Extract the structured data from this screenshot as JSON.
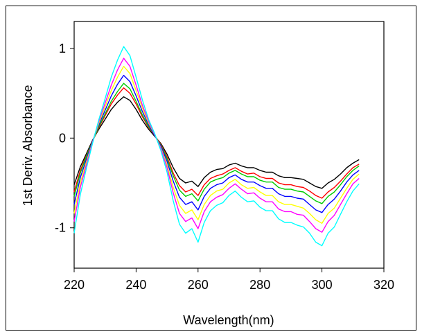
{
  "chart_data": {
    "type": "line",
    "title": "",
    "xlabel": "Wavelength(nm)",
    "ylabel": "1st Deriv. Absorbance",
    "xlim": [
      220,
      320
    ],
    "ylim": [
      -1.45,
      1.3
    ],
    "xticks": [
      220,
      240,
      260,
      280,
      300,
      320
    ],
    "yticks": [
      -1,
      0,
      1
    ],
    "x": [
      220,
      222,
      224,
      226,
      228,
      230,
      232,
      234,
      236,
      238,
      240,
      242,
      244,
      246,
      248,
      250,
      252,
      254,
      256,
      258,
      260,
      262,
      264,
      266,
      268,
      270,
      272,
      274,
      276,
      278,
      280,
      282,
      284,
      286,
      288,
      290,
      292,
      294,
      296,
      298,
      300,
      302,
      304,
      306,
      308,
      310,
      312
    ],
    "grid": false,
    "legend": "none",
    "series": [
      {
        "color": "#000000",
        "values": [
          -0.52,
          -0.32,
          -0.17,
          -0.02,
          0.1,
          0.21,
          0.32,
          0.4,
          0.46,
          0.42,
          0.32,
          0.2,
          0.1,
          0.02,
          -0.06,
          -0.18,
          -0.33,
          -0.45,
          -0.5,
          -0.48,
          -0.54,
          -0.44,
          -0.38,
          -0.35,
          -0.34,
          -0.3,
          -0.28,
          -0.31,
          -0.33,
          -0.33,
          -0.36,
          -0.38,
          -0.38,
          -0.42,
          -0.44,
          -0.44,
          -0.45,
          -0.46,
          -0.5,
          -0.54,
          -0.56,
          -0.5,
          -0.46,
          -0.4,
          -0.33,
          -0.28,
          -0.24
        ]
      },
      {
        "color": "#ff0000",
        "values": [
          -0.6,
          -0.36,
          -0.19,
          -0.03,
          0.12,
          0.25,
          0.38,
          0.48,
          0.56,
          0.5,
          0.38,
          0.24,
          0.12,
          0.03,
          -0.07,
          -0.21,
          -0.39,
          -0.53,
          -0.6,
          -0.57,
          -0.64,
          -0.52,
          -0.45,
          -0.42,
          -0.4,
          -0.36,
          -0.33,
          -0.37,
          -0.4,
          -0.39,
          -0.43,
          -0.45,
          -0.45,
          -0.5,
          -0.52,
          -0.52,
          -0.54,
          -0.55,
          -0.59,
          -0.64,
          -0.67,
          -0.6,
          -0.55,
          -0.48,
          -0.4,
          -0.33,
          -0.29
        ]
      },
      {
        "color": "#00cc00",
        "values": [
          -0.65,
          -0.39,
          -0.2,
          -0.03,
          0.13,
          0.27,
          0.41,
          0.52,
          0.61,
          0.55,
          0.41,
          0.26,
          0.13,
          0.03,
          -0.08,
          -0.23,
          -0.42,
          -0.58,
          -0.65,
          -0.62,
          -0.7,
          -0.57,
          -0.49,
          -0.46,
          -0.44,
          -0.39,
          -0.36,
          -0.4,
          -0.43,
          -0.43,
          -0.47,
          -0.49,
          -0.49,
          -0.55,
          -0.57,
          -0.57,
          -0.59,
          -0.6,
          -0.65,
          -0.7,
          -0.73,
          -0.65,
          -0.6,
          -0.52,
          -0.43,
          -0.36,
          -0.31
        ]
      },
      {
        "color": "#0000ff",
        "values": [
          -0.74,
          -0.44,
          -0.23,
          -0.03,
          0.15,
          0.31,
          0.47,
          0.6,
          0.7,
          0.63,
          0.47,
          0.3,
          0.15,
          0.03,
          -0.09,
          -0.26,
          -0.48,
          -0.66,
          -0.74,
          -0.71,
          -0.8,
          -0.65,
          -0.56,
          -0.52,
          -0.5,
          -0.44,
          -0.41,
          -0.46,
          -0.49,
          -0.49,
          -0.53,
          -0.56,
          -0.56,
          -0.62,
          -0.65,
          -0.65,
          -0.67,
          -0.68,
          -0.74,
          -0.8,
          -0.83,
          -0.74,
          -0.68,
          -0.59,
          -0.49,
          -0.41,
          -0.36
        ]
      },
      {
        "color": "#ffff00",
        "values": [
          -0.84,
          -0.5,
          -0.26,
          -0.04,
          0.17,
          0.35,
          0.53,
          0.68,
          0.8,
          0.72,
          0.53,
          0.34,
          0.17,
          0.04,
          -0.11,
          -0.3,
          -0.55,
          -0.75,
          -0.84,
          -0.8,
          -0.91,
          -0.74,
          -0.64,
          -0.59,
          -0.57,
          -0.5,
          -0.46,
          -0.52,
          -0.56,
          -0.55,
          -0.6,
          -0.64,
          -0.64,
          -0.71,
          -0.74,
          -0.74,
          -0.76,
          -0.78,
          -0.84,
          -0.91,
          -0.95,
          -0.84,
          -0.78,
          -0.67,
          -0.56,
          -0.46,
          -0.4
        ]
      },
      {
        "color": "#ff00ff",
        "values": [
          -0.93,
          -0.55,
          -0.29,
          -0.04,
          0.19,
          0.39,
          0.59,
          0.76,
          0.89,
          0.8,
          0.59,
          0.37,
          0.19,
          0.04,
          -0.12,
          -0.33,
          -0.61,
          -0.84,
          -0.93,
          -0.89,
          -1.01,
          -0.82,
          -0.71,
          -0.66,
          -0.63,
          -0.56,
          -0.51,
          -0.57,
          -0.62,
          -0.61,
          -0.67,
          -0.71,
          -0.71,
          -0.79,
          -0.82,
          -0.82,
          -0.85,
          -0.86,
          -0.93,
          -1.01,
          -1.05,
          -0.93,
          -0.86,
          -0.74,
          -0.62,
          -0.51,
          -0.45
        ]
      },
      {
        "color": "#00ffff",
        "values": [
          -1.06,
          -0.63,
          -0.33,
          -0.05,
          0.21,
          0.44,
          0.68,
          0.87,
          1.02,
          0.92,
          0.68,
          0.43,
          0.21,
          0.05,
          -0.14,
          -0.38,
          -0.7,
          -0.96,
          -1.06,
          -1.01,
          -1.16,
          -0.94,
          -0.81,
          -0.75,
          -0.72,
          -0.64,
          -0.59,
          -0.66,
          -0.71,
          -0.7,
          -0.77,
          -0.81,
          -0.81,
          -0.9,
          -0.94,
          -0.94,
          -0.97,
          -0.99,
          -1.06,
          -1.16,
          -1.2,
          -1.06,
          -0.99,
          -0.85,
          -0.71,
          -0.59,
          -0.51
        ]
      }
    ]
  }
}
